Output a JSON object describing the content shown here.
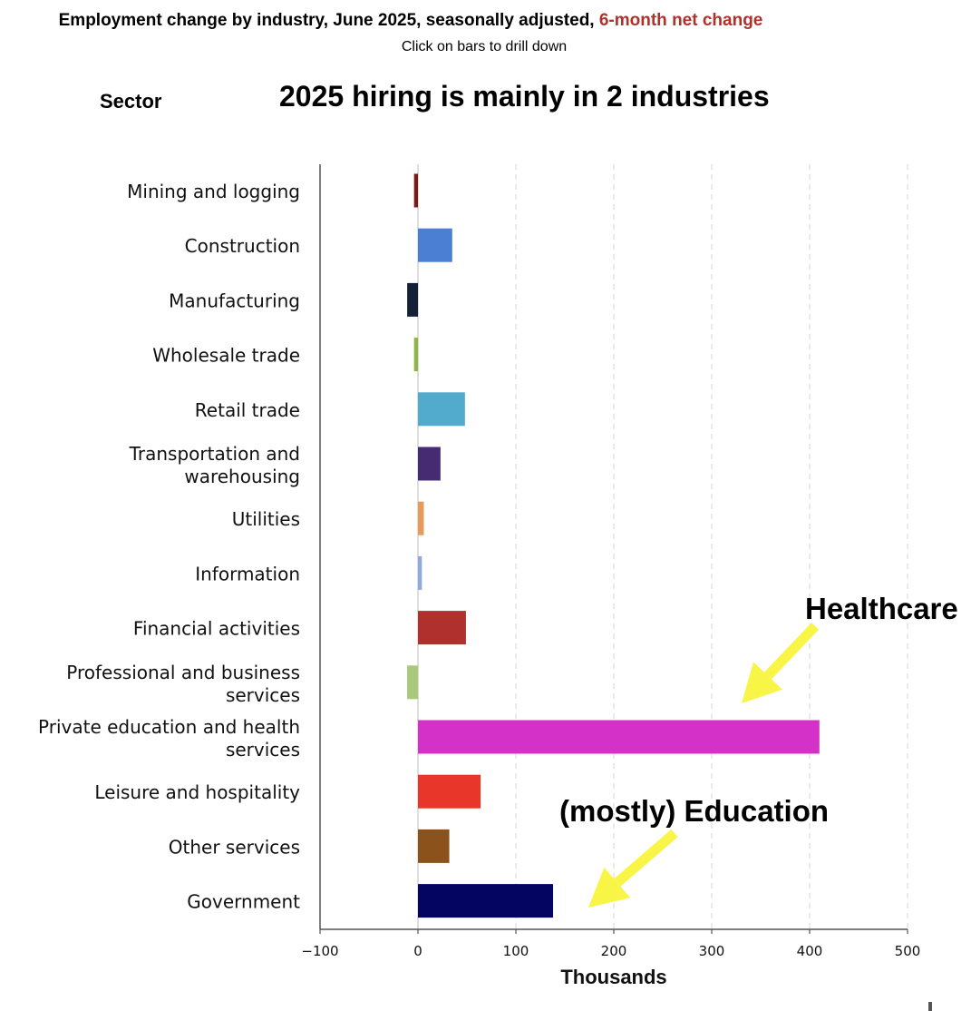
{
  "header": {
    "title": "Employment change by industry, June 2025, seasonally adjusted,",
    "highlight": "6-month net change",
    "subtitle": "Click on bars to drill down",
    "sector_label": "Sector",
    "headline": "2025 hiring is mainly in 2 industries"
  },
  "chart_data": {
    "type": "bar",
    "orientation": "horizontal",
    "title": "Employment change by industry, June 2025, seasonally adjusted, 6-month net change",
    "xlabel": "Thousands",
    "ylabel": "Sector",
    "xlim": [
      -100,
      500
    ],
    "xticks": [
      -100,
      0,
      100,
      200,
      300,
      400,
      500
    ],
    "xtick_labels": [
      "−100",
      "0",
      "100",
      "200",
      "300",
      "400",
      "500"
    ],
    "grid": "vertical dashed",
    "categories": [
      [
        "Mining and logging"
      ],
      [
        "Construction"
      ],
      [
        "Manufacturing"
      ],
      [
        "Wholesale trade"
      ],
      [
        "Retail trade"
      ],
      [
        "Transportation and",
        "warehousing"
      ],
      [
        "Utilities"
      ],
      [
        "Information"
      ],
      [
        "Financial activities"
      ],
      [
        "Professional and business",
        "services"
      ],
      [
        "Private education and health",
        "services"
      ],
      [
        "Leisure and hospitality"
      ],
      [
        "Other services"
      ],
      [
        "Government"
      ]
    ],
    "values": [
      -4,
      35,
      -11,
      -4,
      48,
      23,
      6,
      4,
      49,
      -11,
      410,
      64,
      32,
      138
    ],
    "colors": [
      "#7b1a1a",
      "#4a7fd4",
      "#132037",
      "#8fb44a",
      "#52aacd",
      "#462b72",
      "#e89a5a",
      "#8fa8e0",
      "#b0302e",
      "#a8c97a",
      "#d331c8",
      "#e8362a",
      "#8b531b",
      "#030561"
    ],
    "annotations": [
      {
        "text": "Healthcare"
      },
      {
        "text": "(mostly) Education"
      }
    ],
    "annotation_color": "#f8f547"
  }
}
